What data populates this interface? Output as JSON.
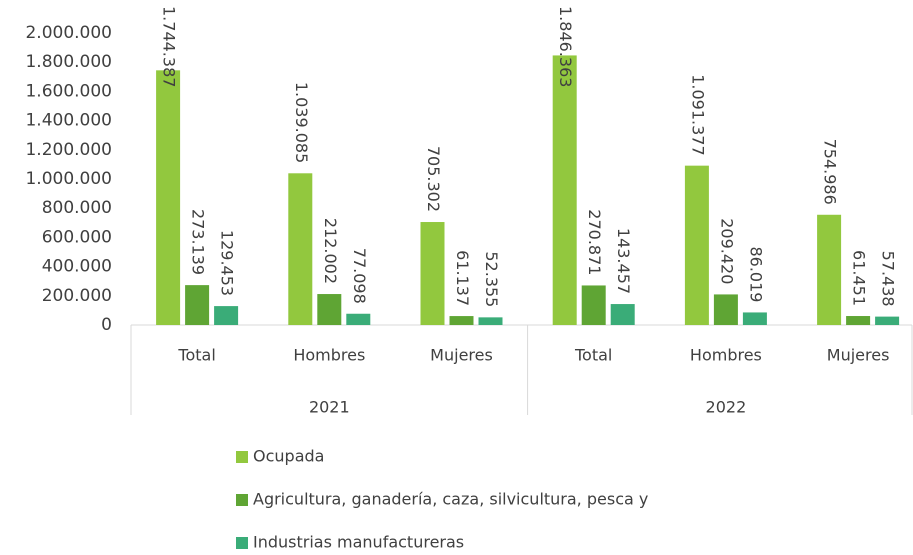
{
  "chart_data": {
    "type": "bar",
    "categories": [
      "Total",
      "Hombres",
      "Mujeres",
      "Total",
      "Hombres",
      "Mujeres"
    ],
    "category_groups": [
      "2021",
      "2022"
    ],
    "series": [
      {
        "name": "Ocupada",
        "color": "#92c83e",
        "values": [
          1744387,
          1039085,
          705302,
          1846363,
          1091377,
          754986
        ],
        "value_labels": [
          "1.744.387",
          "1.039.085",
          "705.302",
          "1.846.363",
          "1.091.377",
          "754.986"
        ]
      },
      {
        "name": "Agricultura, ganadería, caza, silvicultura, pesca y",
        "color": "#5fa534",
        "values": [
          273139,
          212002,
          61137,
          270871,
          209420,
          61451
        ],
        "value_labels": [
          "273.139",
          "212.002",
          "61.137",
          "270.871",
          "209.420",
          "61.451"
        ]
      },
      {
        "name": "Industrias manufactureras",
        "color": "#3aac78",
        "values": [
          129453,
          77098,
          52355,
          143457,
          86019,
          57438
        ],
        "value_labels": [
          "129.453",
          "77.098",
          "52.355",
          "143.457",
          "86.019",
          "57.438"
        ]
      }
    ],
    "ylim": [
      0,
      2000000
    ],
    "yticks": [
      0,
      {
        "value": 200000,
        "label": "200.000"
      },
      {
        "value": 400000,
        "label": "400.000"
      },
      {
        "value": 600000,
        "label": "600.000"
      },
      {
        "value": 800000,
        "label": "800.000"
      },
      {
        "value": 1000000,
        "label": "1.000.000"
      },
      {
        "value": 1200000,
        "label": "1.200.000"
      },
      {
        "value": 1400000,
        "label": "1.400.000"
      },
      {
        "value": 1600000,
        "label": "1.600.000"
      },
      {
        "value": 1800000,
        "label": "1.800.000"
      },
      {
        "value": 2000000,
        "label": "2.000.000"
      }
    ],
    "grid": false,
    "legend": "bottom"
  }
}
